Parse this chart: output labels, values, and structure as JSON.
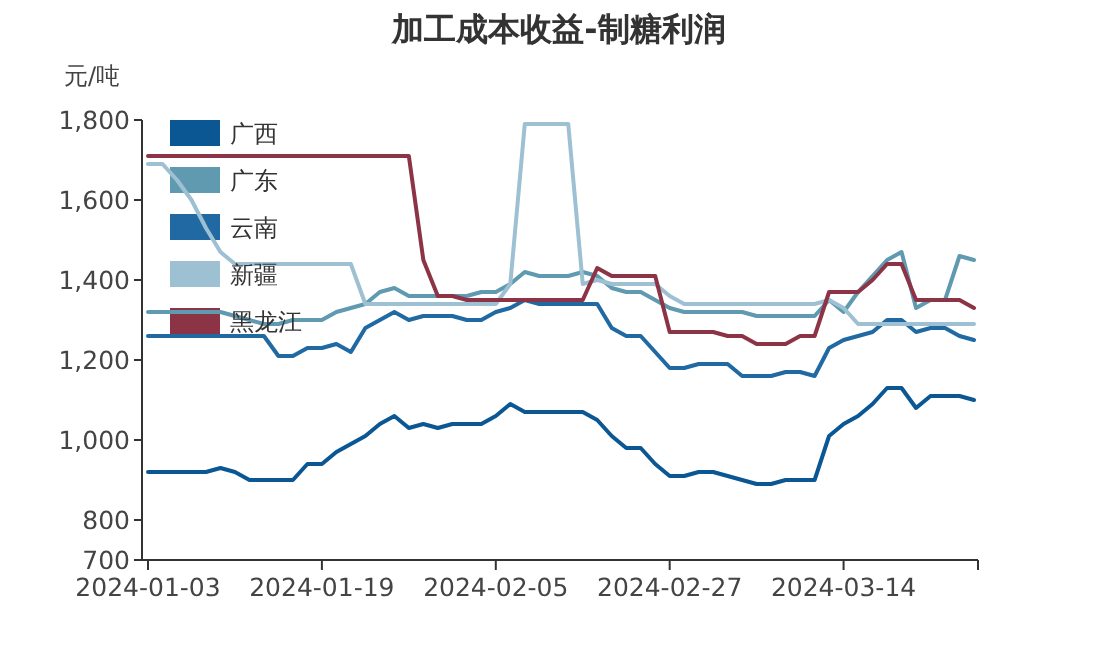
{
  "chart_data": {
    "type": "line",
    "title": "加工成本收益-制糖利润",
    "ylabel": "元/吨",
    "categories": [
      "2024-01-03",
      null,
      null,
      null,
      null,
      null,
      null,
      null,
      null,
      null,
      null,
      null,
      "2024-01-19",
      null,
      null,
      null,
      null,
      null,
      null,
      null,
      null,
      null,
      null,
      null,
      "2024-02-05",
      null,
      null,
      null,
      null,
      null,
      null,
      null,
      null,
      null,
      null,
      null,
      "2024-02-27",
      null,
      null,
      null,
      null,
      null,
      null,
      null,
      null,
      null,
      null,
      null,
      "2024-03-14",
      null,
      null,
      null,
      null,
      null,
      null,
      null,
      null,
      null
    ],
    "ylim": [
      700,
      1800
    ],
    "yticks": [
      700,
      800,
      {
        "value": 1000,
        "label": "1,000"
      },
      {
        "value": 1200,
        "label": "1,200"
      },
      {
        "value": 1400,
        "label": "1,400"
      },
      {
        "value": 1600,
        "label": "1,600"
      },
      {
        "value": 1800,
        "label": "1,800"
      }
    ],
    "legend": "top left",
    "series": [
      {
        "name": "广西",
        "color": "#0b5794",
        "values": [
          920,
          920,
          920,
          920,
          920,
          930,
          920,
          900,
          900,
          900,
          900,
          940,
          940,
          970,
          990,
          1010,
          1040,
          1060,
          1030,
          1040,
          1030,
          1040,
          1040,
          1040,
          1060,
          1090,
          1070,
          1070,
          1070,
          1070,
          1070,
          1050,
          1010,
          980,
          980,
          940,
          910,
          910,
          920,
          920,
          910,
          900,
          890,
          890,
          900,
          900,
          900,
          1010,
          1040,
          1060,
          1090,
          1130,
          1130,
          1080,
          1110,
          1110,
          1110,
          1100
        ]
      },
      {
        "name": "广东",
        "color": "#5f9ab0",
        "values": [
          1320,
          1320,
          1320,
          1320,
          1320,
          1320,
          1310,
          1300,
          1290,
          1290,
          1300,
          1300,
          1300,
          1320,
          1330,
          1340,
          1370,
          1380,
          1360,
          1360,
          1360,
          1360,
          1360,
          1370,
          1370,
          1390,
          1420,
          1410,
          1410,
          1410,
          1420,
          1410,
          1380,
          1370,
          1370,
          1350,
          1330,
          1320,
          1320,
          1320,
          1320,
          1320,
          1310,
          1310,
          1310,
          1310,
          1310,
          1350,
          1320,
          1370,
          1410,
          1450,
          1470,
          1330,
          1350,
          1350,
          1460,
          1450
        ]
      },
      {
        "name": "云南",
        "color": "#2069a3",
        "values": [
          1260,
          1260,
          1260,
          1260,
          1260,
          1260,
          1260,
          1260,
          1260,
          1210,
          1210,
          1230,
          1230,
          1240,
          1220,
          1280,
          1300,
          1320,
          1300,
          1310,
          1310,
          1310,
          1300,
          1300,
          1320,
          1330,
          1350,
          1340,
          1340,
          1340,
          1340,
          1340,
          1280,
          1260,
          1260,
          1220,
          1180,
          1180,
          1190,
          1190,
          1190,
          1160,
          1160,
          1160,
          1170,
          1170,
          1160,
          1230,
          1250,
          1260,
          1270,
          1300,
          1300,
          1270,
          1280,
          1280,
          1260,
          1250
        ]
      },
      {
        "name": "新疆",
        "color": "#9dc1d3",
        "values": [
          1690,
          1690,
          1650,
          1600,
          1530,
          1470,
          1440,
          1440,
          1440,
          1440,
          1440,
          1440,
          1440,
          1440,
          1440,
          1340,
          1340,
          1340,
          1340,
          1340,
          1340,
          1340,
          1340,
          1340,
          1340,
          1390,
          1790,
          1790,
          1790,
          1790,
          1390,
          1400,
          1390,
          1390,
          1390,
          1390,
          1360,
          1340,
          1340,
          1340,
          1340,
          1340,
          1340,
          1340,
          1340,
          1340,
          1340,
          1350,
          1330,
          1290,
          1290,
          1290,
          1290,
          1290,
          1290,
          1290,
          1290,
          1290
        ]
      },
      {
        "name": "黑龙江",
        "color": "#8c3346",
        "values": [
          1710,
          1710,
          1710,
          1710,
          1710,
          1710,
          1710,
          1710,
          1710,
          1710,
          1710,
          1710,
          1710,
          1710,
          1710,
          1710,
          1710,
          1710,
          1710,
          1450,
          1360,
          1360,
          1350,
          1350,
          1350,
          1350,
          1350,
          1350,
          1350,
          1350,
          1350,
          1430,
          1410,
          1410,
          1410,
          1410,
          1270,
          1270,
          1270,
          1270,
          1260,
          1260,
          1240,
          1240,
          1240,
          1260,
          1260,
          1370,
          1370,
          1370,
          1400,
          1440,
          1440,
          1350,
          1350,
          1350,
          1350,
          1330
        ]
      }
    ]
  }
}
